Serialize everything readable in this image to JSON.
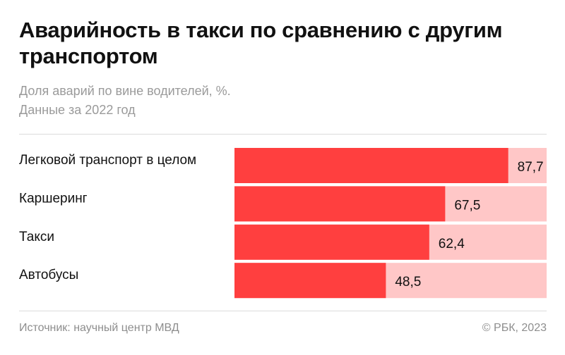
{
  "chart_data": {
    "type": "bar",
    "orientation": "horizontal",
    "title": "Аварийность в такси по сравнению с другим транспортом",
    "subtitle": [
      "Доля аварий по вине водителей, %.",
      "Данные за 2022 год"
    ],
    "categories": [
      "Легковой транспорт в целом",
      "Каршеринг",
      "Такси",
      "Автобусы"
    ],
    "values": [
      87.7,
      67.5,
      62.4,
      48.5
    ],
    "value_labels": [
      "87,7",
      "67,5",
      "62,4",
      "48,5"
    ],
    "color": "#ff3f3f",
    "track_color": "#ffc7c7",
    "xlim": [
      0,
      100
    ],
    "source": "Источник: научный центр МВД",
    "credit": "© РБК, 2023"
  }
}
